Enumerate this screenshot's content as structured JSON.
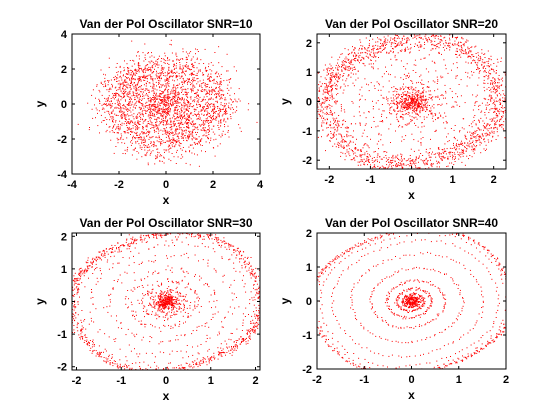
{
  "chart_data": [
    {
      "type": "scatter",
      "title": "Van der Pol Oscillator SNR=10",
      "snr": 10,
      "xlabel": "x",
      "ylabel": "y",
      "xlim": [
        -4,
        4
      ],
      "ylim": [
        -4,
        4
      ],
      "xticks": [
        -4,
        -2,
        0,
        2,
        4
      ],
      "yticks": [
        -4,
        -2,
        0,
        2,
        4
      ],
      "marker_color": "#ff0000",
      "series": [
        {
          "name": "trajectory",
          "description": "noisy phase-plane trajectory spiralling out to a limit cycle of radius ~2"
        }
      ]
    },
    {
      "type": "scatter",
      "title": "Van der Pol Oscillator SNR=20",
      "snr": 20,
      "xlabel": "x",
      "ylabel": "y",
      "xlim": [
        -2.3,
        2.3
      ],
      "ylim": [
        -2.3,
        2.3
      ],
      "xticks": [
        -2,
        -1,
        0,
        1,
        2
      ],
      "yticks": [
        -2,
        -1,
        0,
        1,
        2
      ],
      "marker_color": "#ff0000",
      "series": [
        {
          "name": "trajectory",
          "description": "noisy phase-plane trajectory spiralling out to a limit cycle of radius ~2"
        }
      ]
    },
    {
      "type": "scatter",
      "title": "Van der Pol Oscillator SNR=30",
      "snr": 30,
      "xlabel": "x",
      "ylabel": "y",
      "xlim": [
        -2.1,
        2.1
      ],
      "ylim": [
        -2.1,
        2.1
      ],
      "xticks": [
        -2,
        -1,
        0,
        1,
        2
      ],
      "yticks": [
        -2,
        -1,
        0,
        1,
        2
      ],
      "marker_color": "#ff0000",
      "series": [
        {
          "name": "trajectory",
          "description": "noisy phase-plane trajectory spiralling out to a limit cycle of radius ~2"
        }
      ]
    },
    {
      "type": "scatter",
      "title": "Van der Pol Oscillator SNR=40",
      "snr": 40,
      "xlabel": "x",
      "ylabel": "y",
      "xlim": [
        -2,
        2
      ],
      "ylim": [
        -2,
        2
      ],
      "xticks": [
        -2,
        -1,
        0,
        1,
        2
      ],
      "yticks": [
        -2,
        -1,
        0,
        1,
        2
      ],
      "marker_color": "#ff0000",
      "series": [
        {
          "name": "trajectory",
          "description": "noisy phase-plane trajectory spiralling out to a limit cycle of radius ~2"
        }
      ]
    }
  ]
}
